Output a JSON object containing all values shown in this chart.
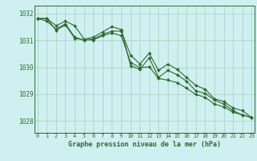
{
  "x": [
    0,
    1,
    2,
    3,
    4,
    5,
    6,
    7,
    8,
    9,
    10,
    11,
    12,
    13,
    14,
    15,
    16,
    17,
    18,
    19,
    20,
    21,
    22,
    23
  ],
  "line1": [
    1031.82,
    1031.82,
    1031.55,
    1031.72,
    1031.55,
    1031.05,
    1031.12,
    1031.32,
    1031.52,
    1031.4,
    1030.05,
    1029.92,
    1030.35,
    1029.62,
    1029.88,
    1029.72,
    1029.48,
    1029.12,
    1029.02,
    1028.78,
    1028.62,
    1028.38,
    1028.22,
    1028.12
  ],
  "line2": [
    1031.82,
    1031.72,
    1031.42,
    1031.62,
    1031.12,
    1031.02,
    1031.05,
    1031.22,
    1031.35,
    1031.35,
    1030.45,
    1030.12,
    1030.52,
    1029.88,
    1030.12,
    1029.92,
    1029.62,
    1029.32,
    1029.18,
    1028.82,
    1028.72,
    1028.48,
    1028.38,
    1028.12
  ],
  "line3": [
    1031.82,
    1031.82,
    1031.38,
    1031.58,
    1031.08,
    1031.02,
    1031.02,
    1031.18,
    1031.28,
    1031.18,
    1030.18,
    1029.98,
    1030.02,
    1029.58,
    1029.52,
    1029.42,
    1029.22,
    1028.98,
    1028.88,
    1028.62,
    1028.52,
    1028.32,
    1028.22,
    1028.12
  ],
  "bg_color": "#cff0f0",
  "grid_color": "#aaccbb",
  "line_color": "#2d6a2d",
  "ylabel_ticks": [
    1028,
    1029,
    1030,
    1031,
    1032
  ],
  "xlabel_label": "Graphe pression niveau de la mer (hPa)",
  "ylim": [
    1027.55,
    1032.3
  ],
  "xlim": [
    -0.3,
    23.3
  ]
}
